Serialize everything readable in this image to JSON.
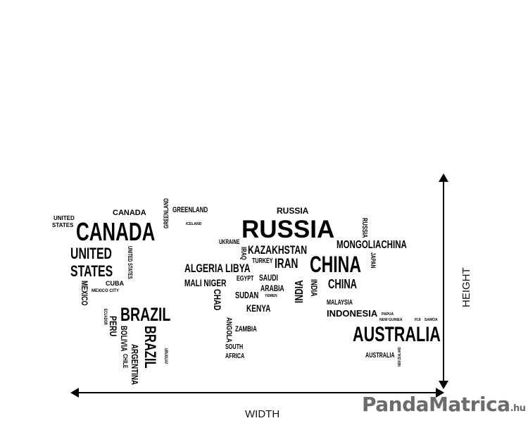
{
  "labels": [
    "UNITED",
    "STATES",
    "CANADA",
    "CANADA",
    "UNITED",
    "STATES",
    "UNITED STATES",
    "MEXICO",
    "CUBA",
    "MEXICO CITY",
    "BRAZIL",
    "PERU",
    "BOLIVIA",
    "BRAZIL",
    "ARGENTINA",
    "CHILE",
    "GREENLAND",
    "ICELAND",
    "ALGERIA",
    "MALI NIGER",
    "LIBYA",
    "RUSSIA",
    "RUSSIA",
    "RUSSIA",
    "KAZAKHSTAN",
    "MONGOLIACHINA",
    "CHINA",
    "CHINA",
    "JAPAN",
    "INDIA",
    "IRAN",
    "SAUDI",
    "ARABIA",
    "CHAD",
    "SUDAN",
    "TURKEY",
    "KENYA",
    "ANGOLA",
    "ZAMBIA",
    "SOUTH",
    "AFRICA",
    "MALAYSIA",
    "INDONESIA",
    "PAPUA",
    "NEW GUINEA",
    "AUSTRALIA",
    "AUSTRALIA",
    "FIJI",
    "SAMOA",
    "NEW ZEALAND",
    "EGYPT",
    "UKRAINE",
    "ECUADOR",
    "URUGUAY",
    "GREENLAND",
    "YEMEN",
    "INDIA",
    "IRAQ"
  ],
  "dimensions": {
    "width_label": "WIDTH",
    "height_label": "HEIGHT"
  },
  "logo": {
    "brand": "PandaMatrica",
    "tld": ".hu"
  },
  "colors": {
    "text": "#000000",
    "logo": "#6b6b6b"
  }
}
